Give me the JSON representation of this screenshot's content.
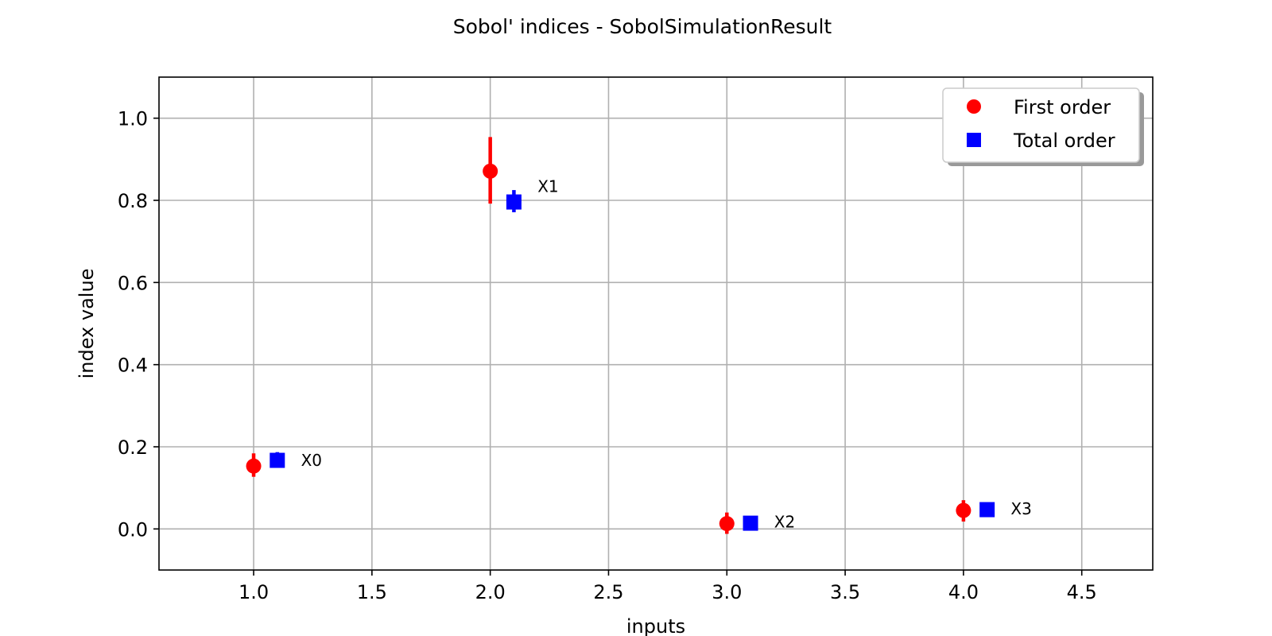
{
  "chart_data": {
    "type": "scatter",
    "title": "Sobol' indices - SobolSimulationResult",
    "xlabel": "inputs",
    "ylabel": "index value",
    "xlim": [
      0.6,
      4.8
    ],
    "ylim": [
      -0.1,
      1.1
    ],
    "xticks": [
      1.0,
      1.5,
      2.0,
      2.5,
      3.0,
      3.5,
      4.0,
      4.5
    ],
    "xtick_labels": [
      "1.0",
      "1.5",
      "2.0",
      "2.5",
      "3.0",
      "3.5",
      "4.0",
      "4.5"
    ],
    "yticks": [
      0.0,
      0.2,
      0.4,
      0.6,
      0.8,
      1.0
    ],
    "ytick_labels": [
      "0.0",
      "0.2",
      "0.4",
      "0.6",
      "0.8",
      "1.0"
    ],
    "grid": true,
    "legend_position": "top-right",
    "series": [
      {
        "name": "First order",
        "marker": "circle",
        "color": "#ff0000",
        "x": [
          1.0,
          2.0,
          3.0,
          4.0
        ],
        "y": [
          0.153,
          0.871,
          0.013,
          0.045
        ],
        "error_low": [
          0.127,
          0.792,
          -0.012,
          0.018
        ],
        "error_high": [
          0.184,
          0.954,
          0.04,
          0.07
        ]
      },
      {
        "name": "Total order",
        "marker": "square",
        "color": "#0000ff",
        "x": [
          1.1,
          2.1,
          3.1,
          4.1
        ],
        "y": [
          0.167,
          0.796,
          0.014,
          0.047
        ],
        "error_low": [
          0.149,
          0.771,
          0.01,
          0.041
        ],
        "error_high": [
          0.187,
          0.825,
          0.018,
          0.053
        ]
      }
    ],
    "point_labels": [
      {
        "x": 1.2,
        "y": 0.167,
        "text": "X0"
      },
      {
        "x": 2.2,
        "y": 0.834,
        "text": "X1"
      },
      {
        "x": 3.2,
        "y": 0.017,
        "text": "X2"
      },
      {
        "x": 4.2,
        "y": 0.049,
        "text": "X3"
      }
    ]
  }
}
